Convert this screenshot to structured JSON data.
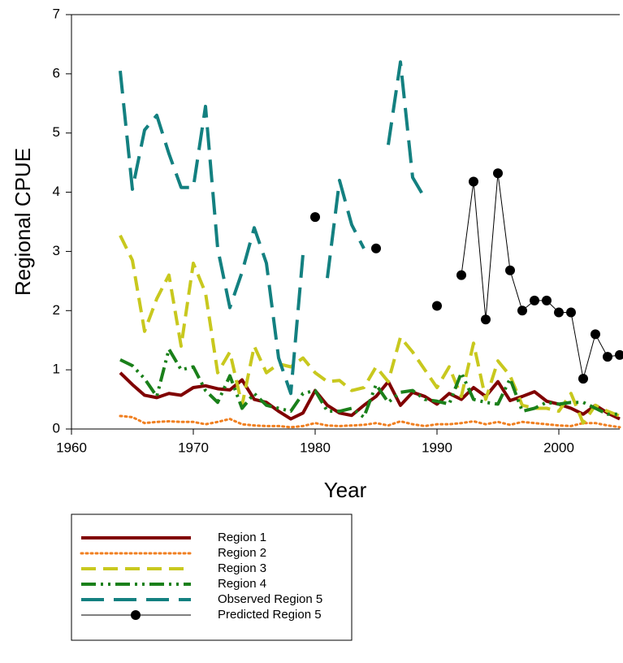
{
  "chart_data": {
    "type": "line",
    "x_label": "Year",
    "y_label": "Regional CPUE",
    "xlim": [
      1960,
      2005
    ],
    "xticks": [
      1960,
      1970,
      1980,
      1990,
      2000
    ],
    "ylim": [
      0,
      7
    ],
    "yticks": [
      0,
      1,
      2,
      3,
      4,
      5,
      6,
      7
    ],
    "x": [
      1964,
      1965,
      1966,
      1967,
      1968,
      1969,
      1970,
      1971,
      1972,
      1973,
      1974,
      1975,
      1976,
      1977,
      1978,
      1979,
      1980,
      1981,
      1982,
      1983,
      1984,
      1985,
      1986,
      1987,
      1988,
      1989,
      1990,
      1991,
      1992,
      1993,
      1994,
      1995,
      1996,
      1997,
      1998,
      1999,
      2000,
      2001,
      2002,
      2003,
      2004,
      2005
    ],
    "legend": "below",
    "series": [
      {
        "name": "Region 1",
        "color": "#800000",
        "line_style": "solid",
        "values": [
          0.95,
          0.75,
          0.57,
          0.53,
          0.6,
          0.57,
          0.7,
          0.73,
          0.68,
          0.66,
          0.83,
          0.5,
          0.45,
          0.3,
          0.17,
          0.27,
          0.65,
          0.4,
          0.27,
          0.23,
          0.4,
          0.55,
          0.8,
          0.4,
          0.62,
          0.55,
          0.42,
          0.6,
          0.5,
          0.7,
          0.55,
          0.8,
          0.48,
          0.55,
          0.63,
          0.47,
          0.42,
          0.35,
          0.25,
          0.4,
          0.27,
          0.17
        ]
      },
      {
        "name": "Region 2",
        "color": "#f07f20",
        "line_style": "dotted",
        "values": [
          0.22,
          0.2,
          0.1,
          0.12,
          0.13,
          0.12,
          0.12,
          0.08,
          0.12,
          0.17,
          0.08,
          0.06,
          0.05,
          0.05,
          0.03,
          0.05,
          0.1,
          0.06,
          0.05,
          0.06,
          0.07,
          0.1,
          0.06,
          0.13,
          0.08,
          0.05,
          0.08,
          0.08,
          0.1,
          0.13,
          0.08,
          0.12,
          0.07,
          0.12,
          0.1,
          0.08,
          0.06,
          0.05,
          0.1,
          0.1,
          0.06,
          0.03
        ]
      },
      {
        "name": "Region 3",
        "color": "#c8c81e",
        "line_style": "dashed",
        "values": [
          3.27,
          2.85,
          1.65,
          2.2,
          2.6,
          1.4,
          2.8,
          2.3,
          0.95,
          1.3,
          0.4,
          1.4,
          0.95,
          1.1,
          1.05,
          1.2,
          0.95,
          0.8,
          0.82,
          0.65,
          0.7,
          1.05,
          0.8,
          1.55,
          1.3,
          1.0,
          0.7,
          1.05,
          0.55,
          1.45,
          0.5,
          1.15,
          0.9,
          0.4,
          0.35,
          0.35,
          0.3,
          0.6,
          0.1,
          0.4,
          0.3,
          0.22
        ]
      },
      {
        "name": "Region 4",
        "color": "#1a801a",
        "line_style": "dash-dot-dot",
        "values": [
          1.17,
          1.07,
          0.85,
          0.55,
          1.35,
          1.0,
          1.05,
          0.65,
          0.45,
          0.9,
          0.35,
          0.6,
          0.4,
          0.35,
          0.3,
          0.6,
          0.65,
          0.3,
          0.3,
          0.35,
          0.2,
          0.75,
          0.45,
          0.62,
          0.65,
          0.5,
          0.47,
          0.42,
          0.95,
          0.5,
          0.45,
          0.42,
          0.85,
          0.3,
          0.35,
          0.45,
          0.42,
          0.45,
          0.45,
          0.35,
          0.25,
          0.25
        ]
      },
      {
        "name": "Observed Region 5",
        "color": "#138080",
        "line_style": "long-dashed",
        "values": [
          6.05,
          4.05,
          5.05,
          5.3,
          4.65,
          4.08,
          4.08,
          5.45,
          3.05,
          2.05,
          2.65,
          3.4,
          2.8,
          1.2,
          0.6,
          2.95,
          null,
          2.55,
          4.2,
          3.45,
          3.05,
          null,
          4.8,
          6.2,
          4.25,
          3.9,
          null,
          null,
          null,
          null,
          null,
          null,
          null,
          null,
          null,
          null,
          null,
          null,
          null,
          null,
          null,
          null
        ]
      },
      {
        "name": "Predicted Region 5",
        "color": "#000000",
        "line_style": "thin",
        "marker": "circle",
        "values": [
          null,
          null,
          null,
          null,
          null,
          null,
          null,
          null,
          null,
          null,
          null,
          null,
          null,
          null,
          null,
          null,
          3.58,
          null,
          null,
          null,
          null,
          3.05,
          null,
          null,
          null,
          null,
          2.08,
          null,
          2.6,
          4.18,
          1.85,
          4.32,
          2.68,
          2.0,
          2.17,
          2.17,
          1.97,
          1.97,
          0.85,
          1.6,
          1.22,
          1.25
        ]
      }
    ]
  }
}
